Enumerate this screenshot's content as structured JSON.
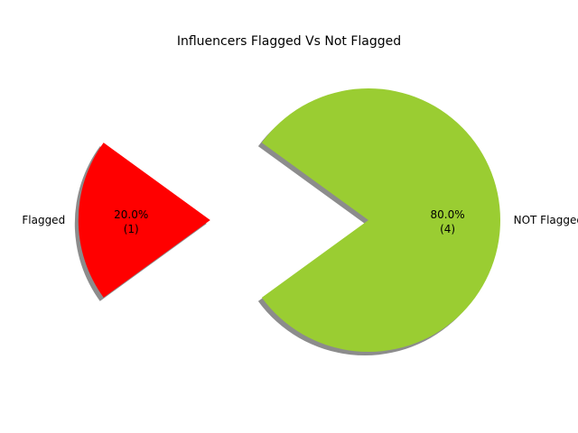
{
  "chart_data": {
    "type": "pie",
    "title": "Influencers Flagged Vs Not Flagged",
    "slices": [
      {
        "label": "Flagged",
        "value": 1,
        "percent": "20.0%",
        "count_label": "(1)",
        "color": "#ff0000",
        "exploded": true
      },
      {
        "label": "NOT Flagged",
        "value": 4,
        "percent": "80.0%",
        "count_label": "(4)",
        "color": "#9acd32",
        "exploded": false
      }
    ],
    "shadow": true,
    "start_angle_deg": 144
  }
}
